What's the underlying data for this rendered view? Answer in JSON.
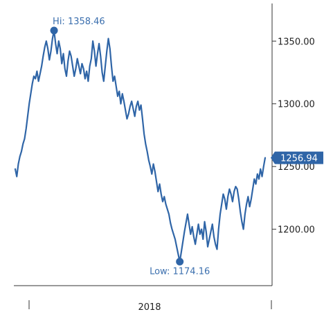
{
  "chart_data": {
    "type": "line",
    "title": "",
    "xlabel": "",
    "ylabel": "",
    "ylim": [
      1155,
      1380
    ],
    "y_ticks": [
      1200,
      1250,
      1300,
      1350
    ],
    "y_tick_labels": [
      "1200.00",
      "1250.00",
      "1300.00",
      "1350.00"
    ],
    "x_tick_label": "2018",
    "grid": false,
    "series_color": "#2f65a7",
    "values": [
      1248,
      1242,
      1252,
      1258,
      1262,
      1268,
      1272,
      1280,
      1290,
      1300,
      1308,
      1316,
      1322,
      1320,
      1326,
      1318,
      1324,
      1330,
      1338,
      1345,
      1350,
      1344,
      1335,
      1342,
      1352,
      1358.46,
      1348,
      1340,
      1350,
      1344,
      1332,
      1340,
      1328,
      1322,
      1334,
      1342,
      1338,
      1330,
      1322,
      1328,
      1336,
      1330,
      1324,
      1332,
      1328,
      1320,
      1326,
      1318,
      1330,
      1336,
      1350,
      1342,
      1330,
      1340,
      1348,
      1338,
      1325,
      1318,
      1330,
      1342,
      1352,
      1344,
      1330,
      1318,
      1322,
      1314,
      1306,
      1310,
      1300,
      1308,
      1302,
      1295,
      1288,
      1292,
      1298,
      1302,
      1296,
      1290,
      1298,
      1302,
      1295,
      1299,
      1288,
      1276,
      1268,
      1262,
      1255,
      1250,
      1244,
      1252,
      1246,
      1238,
      1230,
      1236,
      1228,
      1222,
      1226,
      1220,
      1216,
      1212,
      1205,
      1200,
      1196,
      1192,
      1186,
      1180,
      1174.16,
      1182,
      1190,
      1198,
      1205,
      1212,
      1204,
      1196,
      1202,
      1194,
      1188,
      1196,
      1204,
      1196,
      1200,
      1192,
      1206,
      1198,
      1186,
      1192,
      1198,
      1204,
      1194,
      1188,
      1184,
      1200,
      1212,
      1220,
      1228,
      1224,
      1216,
      1226,
      1232,
      1228,
      1222,
      1230,
      1234,
      1232,
      1224,
      1214,
      1206,
      1200,
      1212,
      1220,
      1226,
      1218,
      1224,
      1232,
      1240,
      1236,
      1244,
      1240,
      1248,
      1242,
      1250,
      1256.94
    ],
    "high": {
      "label": "Hi: 1358.46",
      "value": 1358.46
    },
    "low": {
      "label": "Low: 1174.16",
      "value": 1174.16
    },
    "last": {
      "label": "1256.94",
      "value": 1256.94,
      "color": "#2f65a7"
    }
  }
}
